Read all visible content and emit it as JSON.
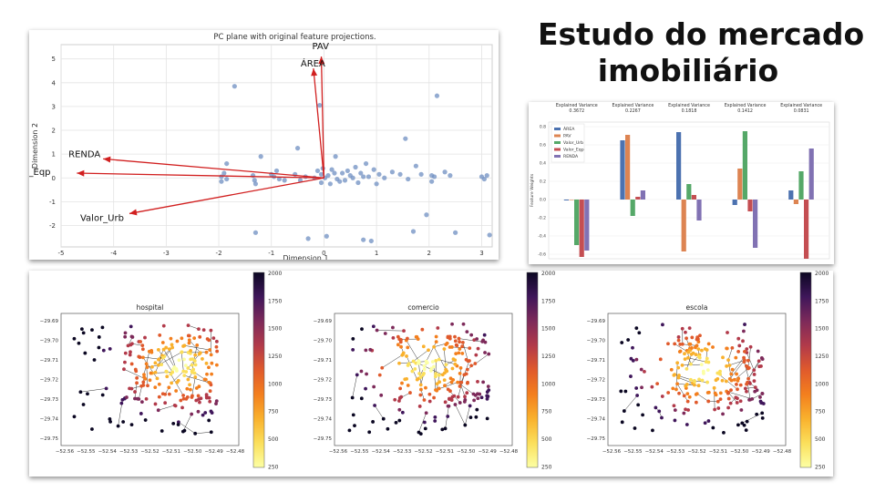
{
  "slide_title_lines": [
    "Estudo do mercado",
    "imobiliário"
  ],
  "colors": {
    "arrow": "#d11f1f",
    "scatter_point": "#6f8fc2",
    "bar_series": [
      "#4c72b0",
      "#dd8452",
      "#55a868",
      "#c44e52",
      "#8172b3"
    ],
    "colormap": "inferno"
  },
  "chart_data": [
    {
      "type": "scatter",
      "title": "PC plane with original feature projections.",
      "xlabel": "Dimension 1",
      "ylabel": "Dimension 2",
      "xlim": [
        -5,
        3.2
      ],
      "ylim": [
        -2.9,
        5.6
      ],
      "xticks": [
        -5,
        -4,
        -3,
        -2,
        -1,
        0,
        1,
        2,
        3
      ],
      "yticks": [
        -2,
        -1,
        0,
        1,
        2,
        3,
        4,
        5
      ],
      "grid": true,
      "points": [
        [
          -1.7,
          3.85
        ],
        [
          -1.95,
          -0.15
        ],
        [
          -1.95,
          0.05
        ],
        [
          -1.9,
          0.2
        ],
        [
          -1.85,
          -0.05
        ],
        [
          -1.85,
          0.6
        ],
        [
          -1.35,
          0.1
        ],
        [
          -1.32,
          -0.1
        ],
        [
          -1.3,
          -2.3
        ],
        [
          -1.2,
          0.9
        ],
        [
          -0.95,
          0.05
        ],
        [
          -0.9,
          0.3
        ],
        [
          -0.85,
          -0.05
        ],
        [
          -0.75,
          -0.1
        ],
        [
          -0.55,
          0.15
        ],
        [
          -0.5,
          1.25
        ],
        [
          -0.45,
          -0.1
        ],
        [
          -0.35,
          0.05
        ],
        [
          -0.3,
          -2.55
        ],
        [
          -0.18,
          0.0
        ],
        [
          -0.12,
          0.3
        ],
        [
          -0.08,
          3.05
        ],
        [
          -0.05,
          -0.2
        ],
        [
          -0.05,
          0.15
        ],
        [
          -0.02,
          0.4
        ],
        [
          0.02,
          0.0
        ],
        [
          0.05,
          -2.45
        ],
        [
          0.08,
          0.1
        ],
        [
          0.12,
          -0.25
        ],
        [
          0.15,
          0.35
        ],
        [
          0.2,
          0.2
        ],
        [
          0.22,
          0.9
        ],
        [
          0.25,
          -0.05
        ],
        [
          0.3,
          -0.15
        ],
        [
          0.35,
          0.2
        ],
        [
          0.4,
          -0.1
        ],
        [
          0.45,
          0.3
        ],
        [
          0.5,
          0.1
        ],
        [
          0.55,
          0.0
        ],
        [
          0.6,
          0.45
        ],
        [
          0.65,
          -0.2
        ],
        [
          0.7,
          0.2
        ],
        [
          0.75,
          0.05
        ],
        [
          0.8,
          0.6
        ],
        [
          0.85,
          0.05
        ],
        [
          0.9,
          -2.65
        ],
        [
          0.95,
          0.35
        ],
        [
          1.0,
          -0.25
        ],
        [
          1.05,
          0.15
        ],
        [
          1.15,
          0.0
        ],
        [
          1.3,
          0.25
        ],
        [
          1.45,
          0.15
        ],
        [
          1.55,
          1.65
        ],
        [
          1.6,
          -0.05
        ],
        [
          1.7,
          -2.25
        ],
        [
          1.75,
          0.5
        ],
        [
          1.85,
          0.15
        ],
        [
          1.95,
          -1.55
        ],
        [
          2.05,
          0.1
        ],
        [
          2.1,
          0.05
        ],
        [
          2.15,
          3.45
        ],
        [
          2.3,
          0.25
        ],
        [
          2.4,
          0.1
        ],
        [
          2.5,
          -2.3
        ],
        [
          3.0,
          0.05
        ],
        [
          3.05,
          -0.05
        ],
        [
          3.1,
          0.1
        ],
        [
          3.15,
          -2.4
        ],
        [
          0.75,
          -2.6
        ],
        [
          2.05,
          -0.15
        ],
        [
          -1.0,
          0.15
        ],
        [
          -1.3,
          -0.25
        ]
      ],
      "arrows": [
        {
          "label": "PAV",
          "x": -0.05,
          "y": 5.1
        },
        {
          "label": "ÁREA",
          "x": -0.2,
          "y": 4.6
        },
        {
          "label": "RENDA",
          "x": -4.2,
          "y": 0.8
        },
        {
          "label": "Valor_Eqp",
          "x": -4.7,
          "y": 0.2
        },
        {
          "label": "Valor_Urb",
          "x": -3.7,
          "y": -1.5
        }
      ]
    },
    {
      "type": "bar",
      "title_prefix": "Explained Variance",
      "ylabel": "Feature Weights",
      "legend": [
        "ÁREA",
        "PAV",
        "Valor_Urb",
        "Valor_Eqp",
        "RENDA"
      ],
      "legend_position": "top-left",
      "ylim": [
        -0.65,
        0.85
      ],
      "yticks": [
        "0.8",
        "0.6",
        "0.4",
        "0.2",
        "0.0",
        "-0.2",
        "-0.4",
        "-0.6"
      ],
      "ytick_values": [
        0.8,
        0.6,
        0.4,
        0.2,
        0.0,
        -0.2,
        -0.4,
        -0.6
      ],
      "dimensions": [
        {
          "variance": "0.3672",
          "values": [
            -0.01,
            0.0,
            -0.5,
            -0.63,
            -0.56
          ]
        },
        {
          "variance": "0.2267",
          "values": [
            0.65,
            0.71,
            -0.18,
            0.03,
            0.1
          ]
        },
        {
          "variance": "0.1818",
          "values": [
            0.74,
            -0.57,
            0.17,
            0.05,
            -0.23
          ]
        },
        {
          "variance": "0.1412",
          "values": [
            -0.06,
            0.34,
            0.75,
            -0.13,
            -0.53
          ]
        },
        {
          "variance": "0.0831",
          "values": [
            0.1,
            -0.05,
            0.31,
            -0.65,
            0.56
          ]
        }
      ]
    },
    {
      "type": "heatmap",
      "maps": [
        {
          "title": "hospital"
        },
        {
          "title": "comercio"
        },
        {
          "title": "escola"
        }
      ],
      "yticks": [
        "−29.69",
        "−29.70",
        "−29.71",
        "−29.72",
        "−29.73",
        "−29.74",
        "−29.75"
      ],
      "xticks": [
        "−52.56",
        "−52.55",
        "−52.54",
        "−52.53",
        "−52.52",
        "−52.51",
        "−52.50",
        "−52.49",
        "−52.48"
      ],
      "colorbar_ticks": [
        "2000",
        "1750",
        "1500",
        "1250",
        "1000",
        "750",
        "500",
        "250"
      ]
    }
  ]
}
